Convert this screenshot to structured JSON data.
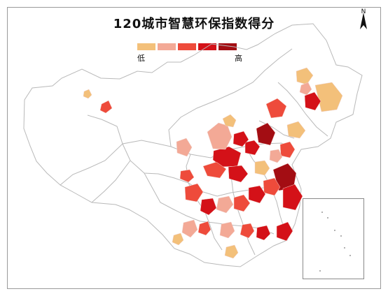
{
  "title": "120城市智慧环保指数得分",
  "legend": {
    "low": "低",
    "high": "高",
    "colors": [
      "#f3c07a",
      "#f3a996",
      "#ee4b3b",
      "#d41118",
      "#a30d13"
    ]
  },
  "north": {
    "label": "N"
  },
  "map": {
    "background": "#ffffff",
    "boundary_color": "#b9b9b9"
  }
}
